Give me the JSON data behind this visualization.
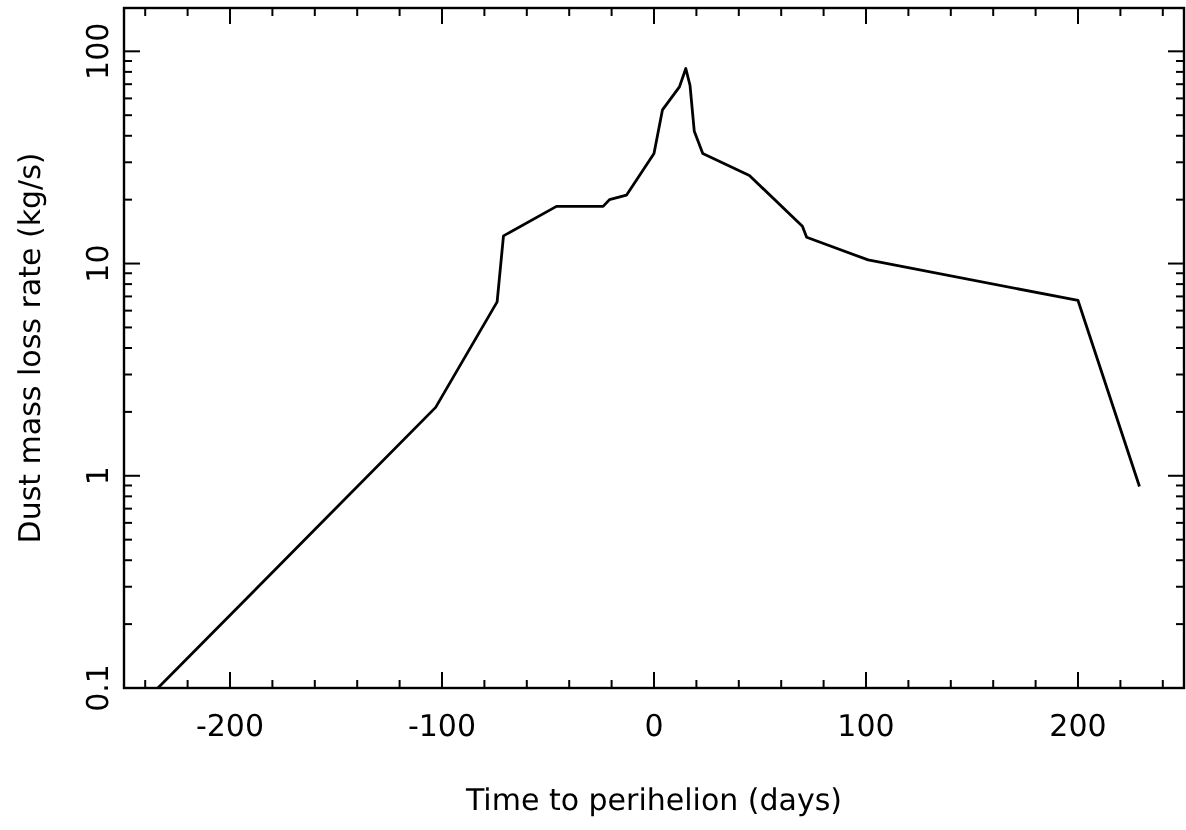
{
  "chart_data": {
    "type": "line",
    "xlabel": "Time to perihelion (days)",
    "ylabel": "Dust mass loss rate (kg/s)",
    "log": "y",
    "grid": false,
    "marker": "none",
    "line_style": "solid",
    "xlim": [
      -250,
      250
    ],
    "ylim": [
      0.1,
      160
    ],
    "xticks": [
      {
        "value": -240,
        "label": null
      },
      {
        "value": -220,
        "label": null
      },
      -200,
      {
        "value": -180,
        "label": null
      },
      {
        "value": -160,
        "label": null
      },
      {
        "value": -140,
        "label": null
      },
      {
        "value": -120,
        "label": null
      },
      -100,
      {
        "value": -80,
        "label": null
      },
      {
        "value": -60,
        "label": null
      },
      {
        "value": -40,
        "label": null
      },
      {
        "value": -20,
        "label": null
      },
      0,
      {
        "value": 20,
        "label": null
      },
      {
        "value": 40,
        "label": null
      },
      {
        "value": 60,
        "label": null
      },
      {
        "value": 80,
        "label": null
      },
      100,
      {
        "value": 120,
        "label": null
      },
      {
        "value": 140,
        "label": null
      },
      {
        "value": 160,
        "label": null
      },
      {
        "value": 180,
        "label": null
      },
      200,
      {
        "value": 220,
        "label": null
      },
      {
        "value": 240,
        "label": null
      }
    ],
    "yticks": [
      0.1,
      {
        "value": 0.2,
        "label": null
      },
      {
        "value": 0.3,
        "label": null
      },
      {
        "value": 0.4,
        "label": null
      },
      {
        "value": 0.5,
        "label": null
      },
      {
        "value": 0.6,
        "label": null
      },
      {
        "value": 0.7,
        "label": null
      },
      {
        "value": 0.8,
        "label": null
      },
      {
        "value": 0.9,
        "label": null
      },
      1,
      {
        "value": 2,
        "label": null
      },
      {
        "value": 3,
        "label": null
      },
      {
        "value": 4,
        "label": null
      },
      {
        "value": 5,
        "label": null
      },
      {
        "value": 6,
        "label": null
      },
      {
        "value": 7,
        "label": null
      },
      {
        "value": 8,
        "label": null
      },
      {
        "value": 9,
        "label": null
      },
      10,
      {
        "value": 20,
        "label": null
      },
      {
        "value": 30,
        "label": null
      },
      {
        "value": 40,
        "label": null
      },
      {
        "value": 50,
        "label": null
      },
      {
        "value": 60,
        "label": null
      },
      {
        "value": 70,
        "label": null
      },
      {
        "value": 80,
        "label": null
      },
      {
        "value": 90,
        "label": null
      },
      100
    ],
    "series": [
      {
        "color": "#000000",
        "x": [
          -234,
          -103,
          -74,
          -71,
          -46,
          -24,
          -21,
          -13,
          0,
          4,
          12,
          15,
          17,
          19,
          23,
          45,
          70,
          72,
          101,
          200,
          229
        ],
        "values": [
          0.1,
          2.1,
          6.6,
          13.5,
          18.6,
          18.6,
          20,
          21,
          33,
          53,
          68,
          83,
          69,
          42,
          33,
          26,
          15,
          13.3,
          10.4,
          6.7,
          0.89
        ]
      }
    ]
  }
}
